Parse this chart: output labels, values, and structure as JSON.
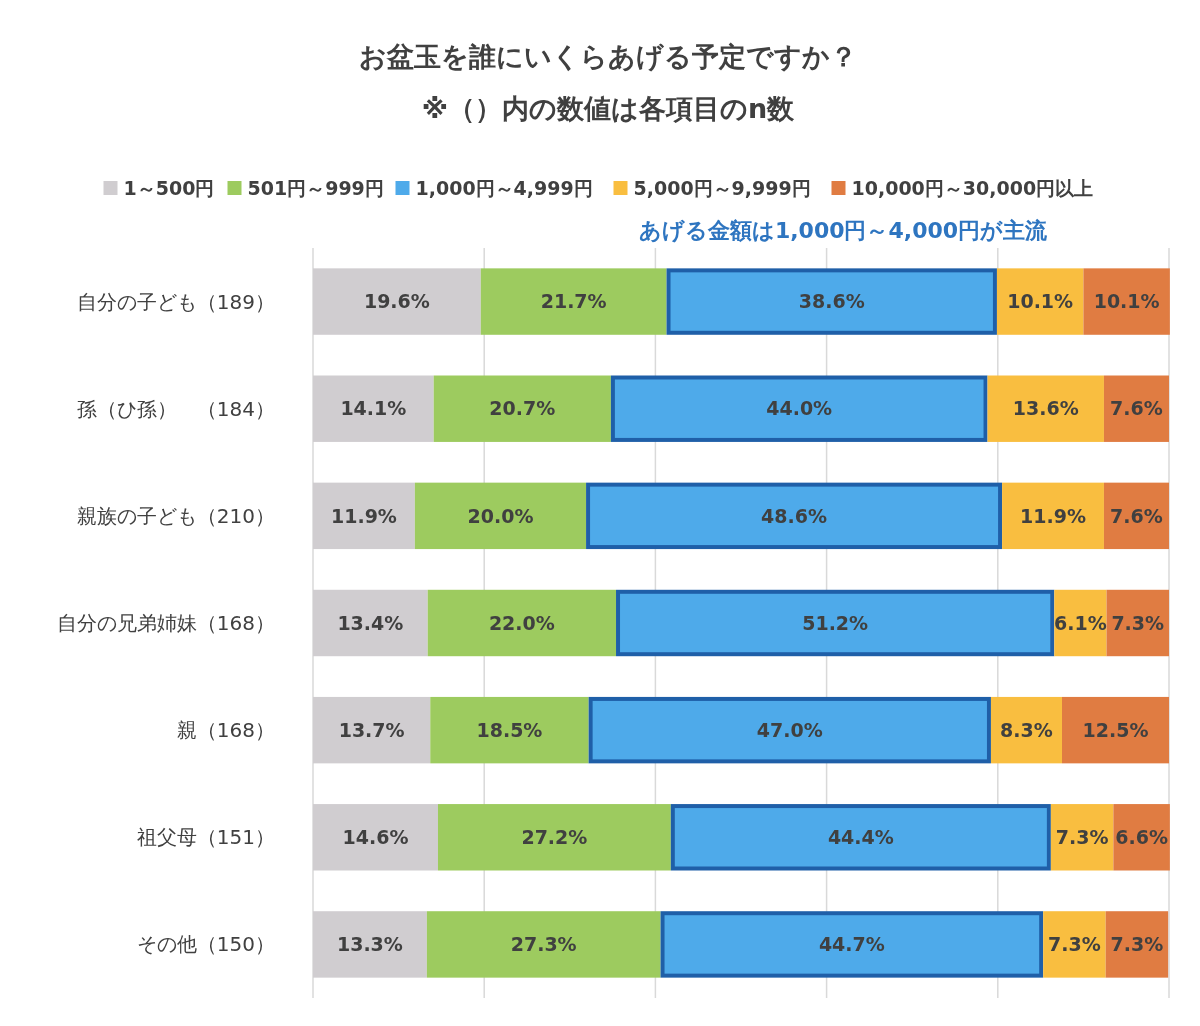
{
  "chart_data": {
    "type": "bar",
    "orientation": "horizontal",
    "stacked": true,
    "title": "お盆玉を誰にいくらあげる予定ですか？",
    "subtitle": "※（）内の数値は各項目のn数",
    "categories": [
      "自分の子ども（189）",
      "孫（ひ孫）　（184）",
      "親族の子ども（210）",
      "自分の兄弟姉妹（168）",
      "親（168）",
      "祖父母（151）",
      "その他（150）"
    ],
    "series": [
      {
        "name": "1～500円",
        "color": "#d0cdd0",
        "values": [
          19.6,
          14.1,
          11.9,
          13.4,
          13.7,
          14.6,
          13.3
        ],
        "value_labels": [
          "19.6%",
          "14.1%",
          "11.9%",
          "13.4%",
          "13.7%",
          "14.6%",
          "13.3%"
        ]
      },
      {
        "name": "501円～999円",
        "color": "#9dcb5f",
        "values": [
          21.7,
          20.7,
          20.0,
          22.0,
          18.5,
          27.2,
          27.3
        ],
        "value_labels": [
          "21.7%",
          "20.7%",
          "20.0%",
          "22.0%",
          "18.5%",
          "27.2%",
          "27.3%"
        ]
      },
      {
        "name": "1,000円～4,999円",
        "color": "#4eaaea",
        "values": [
          38.6,
          44.0,
          48.6,
          51.2,
          47.0,
          44.4,
          44.7
        ],
        "value_labels": [
          "38.6%",
          "44.0%",
          "48.6%",
          "51.2%",
          "47.0%",
          "44.4%",
          "44.7%"
        ]
      },
      {
        "name": "5,000円～9,999円",
        "color": "#f9be40",
        "values": [
          10.1,
          13.6,
          11.9,
          6.1,
          8.3,
          7.3,
          7.3
        ],
        "value_labels": [
          "10.1%",
          "13.6%",
          "11.9%",
          "6.1%",
          "8.3%",
          "7.3%",
          "7.3%"
        ]
      },
      {
        "name": "10,000円～30,000円以上",
        "color": "#e07c42",
        "values": [
          10.1,
          7.6,
          7.6,
          7.3,
          12.5,
          6.6,
          7.3
        ],
        "value_labels": [
          "10.1%",
          "7.6%",
          "7.6%",
          "7.3%",
          "12.5%",
          "6.6%",
          "7.3%"
        ]
      }
    ],
    "xlim": [
      0,
      100
    ],
    "xticks": [
      {
        "value": 0,
        "label": null
      },
      {
        "value": 20,
        "label": null
      },
      {
        "value": 40,
        "label": null
      },
      {
        "value": 60,
        "label": null
      },
      {
        "value": 80,
        "label": null
      },
      {
        "value": 100,
        "label": null
      }
    ],
    "tick_labels": "y",
    "grid": "x",
    "legend": "top",
    "annotations": [
      "あげる金額は1,000円～4,000円が主流"
    ]
  }
}
